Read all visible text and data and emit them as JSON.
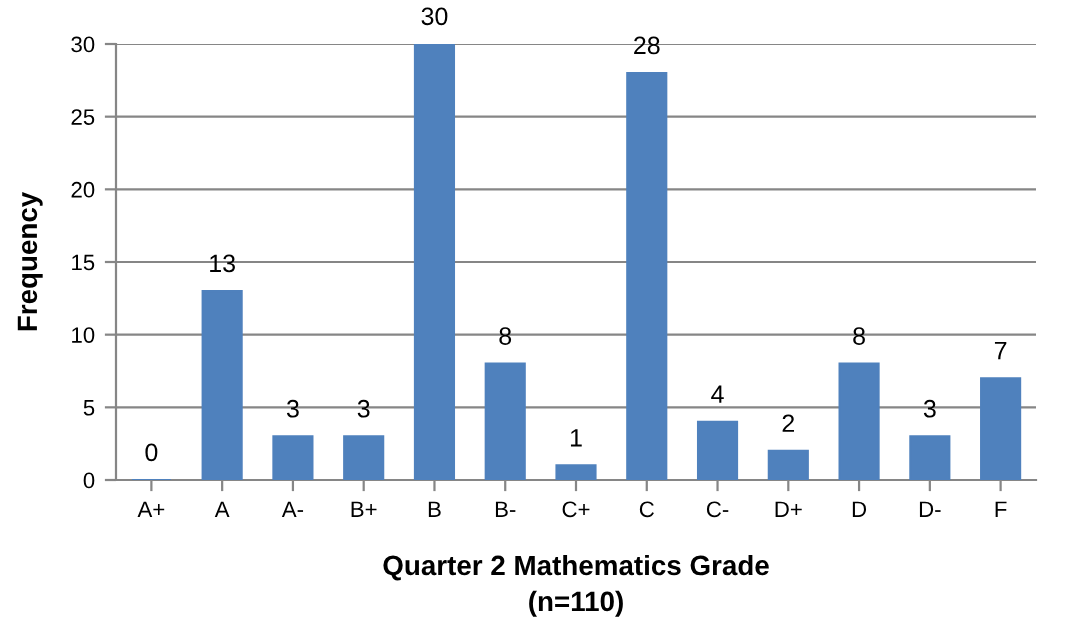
{
  "chart_data": {
    "type": "bar",
    "categories": [
      "A+",
      "A",
      "A-",
      "B+",
      "B",
      "B-",
      "C+",
      "C",
      "C-",
      "D+",
      "D",
      "D-",
      "F"
    ],
    "values": [
      0,
      13,
      3,
      3,
      30,
      8,
      1,
      28,
      4,
      2,
      8,
      3,
      7
    ],
    "color": "#4f81bd",
    "xlabel": "Quarter 2 Mathematics Grade\n(n=110)",
    "ylabel": "Frequency",
    "ylim": [
      0,
      30
    ],
    "yticks": [
      0,
      5,
      10,
      15,
      20,
      25,
      30
    ],
    "grid": "y",
    "data_labels": true
  }
}
